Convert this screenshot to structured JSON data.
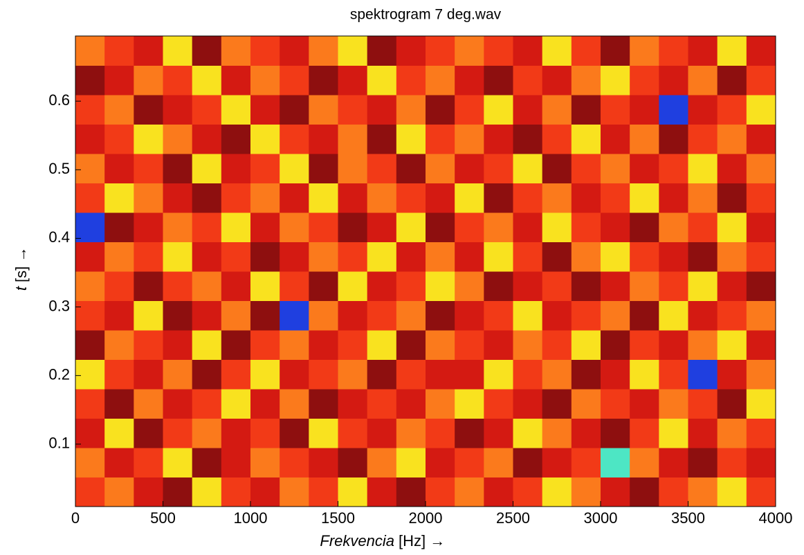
{
  "chart_data": {
    "type": "heatmap",
    "title": "spektrogram 7 deg.wav",
    "x_label": "Frekvencia",
    "x_label_unit": "[Hz] →",
    "y_label": "t",
    "y_label_unit": "[s] →",
    "xlim": [
      0,
      4000
    ],
    "xticks": [
      0,
      500,
      1000,
      1500,
      2000,
      2500,
      3000,
      3500,
      4000
    ],
    "ylim": [
      0.009,
      0.695
    ],
    "yticks": [
      0.1,
      0.2,
      0.3,
      0.4,
      0.5,
      0.6
    ],
    "colors": [
      "#8e0f0f",
      "#d41a12",
      "#f23a17",
      "#fb7a1c",
      "#f9e21f",
      "#4de6c4",
      "#1f3fe0"
    ],
    "z": [
      [
        2,
        3,
        1,
        0,
        4,
        2,
        1,
        3,
        2,
        4,
        1,
        0,
        2,
        3,
        1,
        2,
        4,
        3,
        1,
        0,
        2,
        3,
        4,
        2
      ],
      [
        3,
        1,
        2,
        4,
        0,
        1,
        3,
        2,
        1,
        0,
        3,
        4,
        1,
        2,
        3,
        0,
        1,
        2,
        5,
        3,
        1,
        0,
        2,
        1
      ],
      [
        1,
        4,
        0,
        2,
        3,
        1,
        2,
        0,
        4,
        2,
        1,
        3,
        2,
        0,
        1,
        4,
        3,
        1,
        0,
        2,
        4,
        1,
        3,
        2
      ],
      [
        2,
        0,
        3,
        1,
        2,
        4,
        1,
        3,
        0,
        1,
        2,
        1,
        3,
        4,
        2,
        1,
        0,
        3,
        2,
        1,
        3,
        2,
        0,
        4
      ],
      [
        4,
        2,
        1,
        3,
        0,
        2,
        4,
        1,
        2,
        3,
        0,
        2,
        1,
        1,
        4,
        2,
        3,
        0,
        1,
        4,
        2,
        6,
        1,
        3
      ],
      [
        0,
        3,
        2,
        1,
        4,
        0,
        2,
        3,
        1,
        2,
        4,
        0,
        3,
        2,
        1,
        3,
        2,
        4,
        0,
        2,
        1,
        3,
        4,
        1
      ],
      [
        2,
        1,
        4,
        0,
        1,
        3,
        0,
        6,
        3,
        1,
        2,
        3,
        0,
        1,
        2,
        4,
        1,
        2,
        3,
        0,
        4,
        1,
        2,
        3
      ],
      [
        3,
        2,
        0,
        2,
        3,
        1,
        4,
        2,
        0,
        4,
        1,
        2,
        4,
        3,
        0,
        1,
        2,
        0,
        1,
        3,
        2,
        4,
        1,
        0
      ],
      [
        1,
        3,
        2,
        4,
        1,
        2,
        0,
        1,
        3,
        2,
        4,
        1,
        3,
        1,
        4,
        2,
        0,
        3,
        4,
        2,
        1,
        0,
        3,
        2
      ],
      [
        6,
        0,
        1,
        3,
        2,
        4,
        1,
        3,
        2,
        0,
        1,
        4,
        0,
        2,
        3,
        1,
        4,
        2,
        1,
        0,
        3,
        2,
        4,
        1
      ],
      [
        2,
        4,
        3,
        1,
        0,
        2,
        3,
        1,
        4,
        1,
        3,
        2,
        1,
        4,
        0,
        2,
        3,
        1,
        2,
        4,
        1,
        3,
        0,
        2
      ],
      [
        3,
        1,
        2,
        0,
        4,
        1,
        2,
        4,
        0,
        3,
        2,
        0,
        3,
        1,
        2,
        4,
        0,
        2,
        3,
        1,
        2,
        4,
        1,
        3
      ],
      [
        1,
        2,
        4,
        3,
        1,
        0,
        4,
        2,
        1,
        3,
        0,
        4,
        2,
        3,
        1,
        0,
        2,
        4,
        1,
        3,
        0,
        2,
        3,
        1
      ],
      [
        2,
        3,
        0,
        1,
        2,
        4,
        1,
        0,
        3,
        2,
        1,
        3,
        0,
        2,
        4,
        1,
        3,
        0,
        2,
        1,
        6,
        1,
        2,
        4
      ],
      [
        0,
        1,
        3,
        2,
        4,
        1,
        3,
        2,
        0,
        1,
        4,
        2,
        3,
        1,
        0,
        2,
        1,
        3,
        4,
        2,
        1,
        3,
        0,
        2
      ],
      [
        3,
        2,
        1,
        4,
        0,
        3,
        2,
        1,
        3,
        4,
        0,
        1,
        2,
        3,
        2,
        1,
        4,
        2,
        0,
        3,
        2,
        1,
        4,
        1
      ]
    ]
  }
}
